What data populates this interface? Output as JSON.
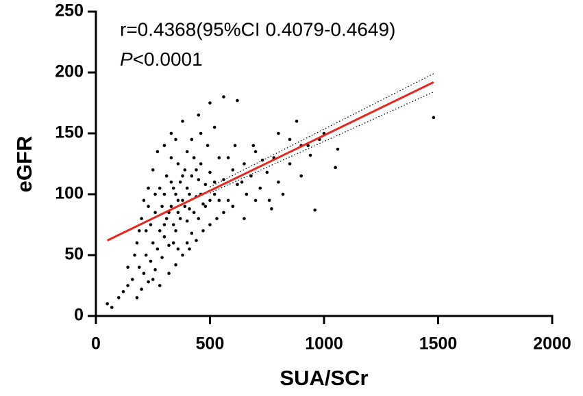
{
  "chart_data": {
    "type": "scatter",
    "xlabel": "SUA/SCr",
    "ylabel": "eGFR",
    "annotations": [
      "r=0.4368(95%CI 0.4079-0.4649)",
      "P<0.0001"
    ],
    "xlim": [
      0,
      2000
    ],
    "ylim": [
      0,
      250
    ],
    "xticks": [
      0,
      500,
      1000,
      1500,
      2000
    ],
    "yticks": [
      0,
      50,
      100,
      150,
      200,
      250
    ],
    "grid": false,
    "series": [
      {
        "color": "#000000",
        "x": [
          50,
          70,
          120,
          140,
          160,
          180,
          200,
          190,
          210,
          220,
          230,
          240,
          250,
          260,
          270,
          280,
          290,
          300,
          310,
          320,
          330,
          340,
          350,
          360,
          370,
          380,
          390,
          400,
          410,
          420,
          430,
          440,
          450,
          460,
          470,
          480,
          500,
          520,
          540,
          560,
          580,
          600,
          620,
          650,
          680,
          700,
          720,
          750,
          780,
          800,
          820,
          850,
          880,
          900,
          930,
          960,
          1000,
          1050,
          1060,
          1480,
          560,
          620,
          500,
          450,
          380,
          330,
          300,
          270,
          250,
          230,
          210,
          200,
          190,
          180,
          170,
          250,
          280,
          320,
          350,
          380,
          410,
          440,
          470,
          500,
          530,
          560,
          600,
          650,
          700,
          330,
          360,
          400,
          420,
          460,
          490,
          520,
          350,
          370,
          390,
          410,
          430,
          300,
          310,
          290,
          280,
          260,
          240,
          340,
          360,
          380,
          400,
          420,
          440,
          460,
          480,
          500,
          330,
          350,
          300,
          320,
          340,
          360,
          260,
          230,
          220,
          400,
          450,
          520,
          540,
          580,
          610,
          640,
          660,
          690,
          730,
          760,
          770,
          800,
          850,
          140,
          100,
          900,
          940,
          980
        ],
        "values": [
          10,
          7,
          20,
          25,
          30,
          15,
          22,
          40,
          35,
          50,
          28,
          45,
          60,
          38,
          55,
          70,
          48,
          65,
          80,
          58,
          90,
          75,
          100,
          85,
          110,
          95,
          120,
          105,
          88,
          115,
          130,
          98,
          112,
          125,
          92,
          108,
          118,
          100,
          130,
          112,
          95,
          120,
          108,
          125,
          115,
          135,
          105,
          118,
          130,
          150,
          100,
          125,
          160,
          140,
          140,
          87,
          150,
          122,
          137,
          163,
          180,
          177,
          175,
          165,
          160,
          150,
          140,
          135,
          120,
          105,
          95,
          80,
          70,
          60,
          50,
          30,
          25,
          35,
          42,
          50,
          55,
          62,
          70,
          75,
          80,
          85,
          90,
          80,
          95,
          110,
          125,
          135,
          145,
          150,
          140,
          155,
          70,
          80,
          90,
          100,
          85,
          100,
          115,
          90,
          105,
          85,
          75,
          105,
          95,
          115,
          78,
          68,
          120,
          100,
          90,
          95,
          130,
          145,
          75,
          85,
          60,
          55,
          100,
          90,
          70,
          60,
          80,
          110,
          95,
          130,
          140,
          110,
          100,
          140,
          128,
          95,
          88,
          110,
          145,
          40,
          15,
          115,
          132,
          145
        ]
      }
    ],
    "fit": {
      "color": "#e8261c",
      "x": [
        50,
        1480
      ],
      "y": [
        62,
        192
      ]
    },
    "ci": {
      "x": [
        500,
        1480
      ],
      "upper": [
        106,
        199
      ],
      "lower": [
        101,
        184
      ]
    }
  }
}
